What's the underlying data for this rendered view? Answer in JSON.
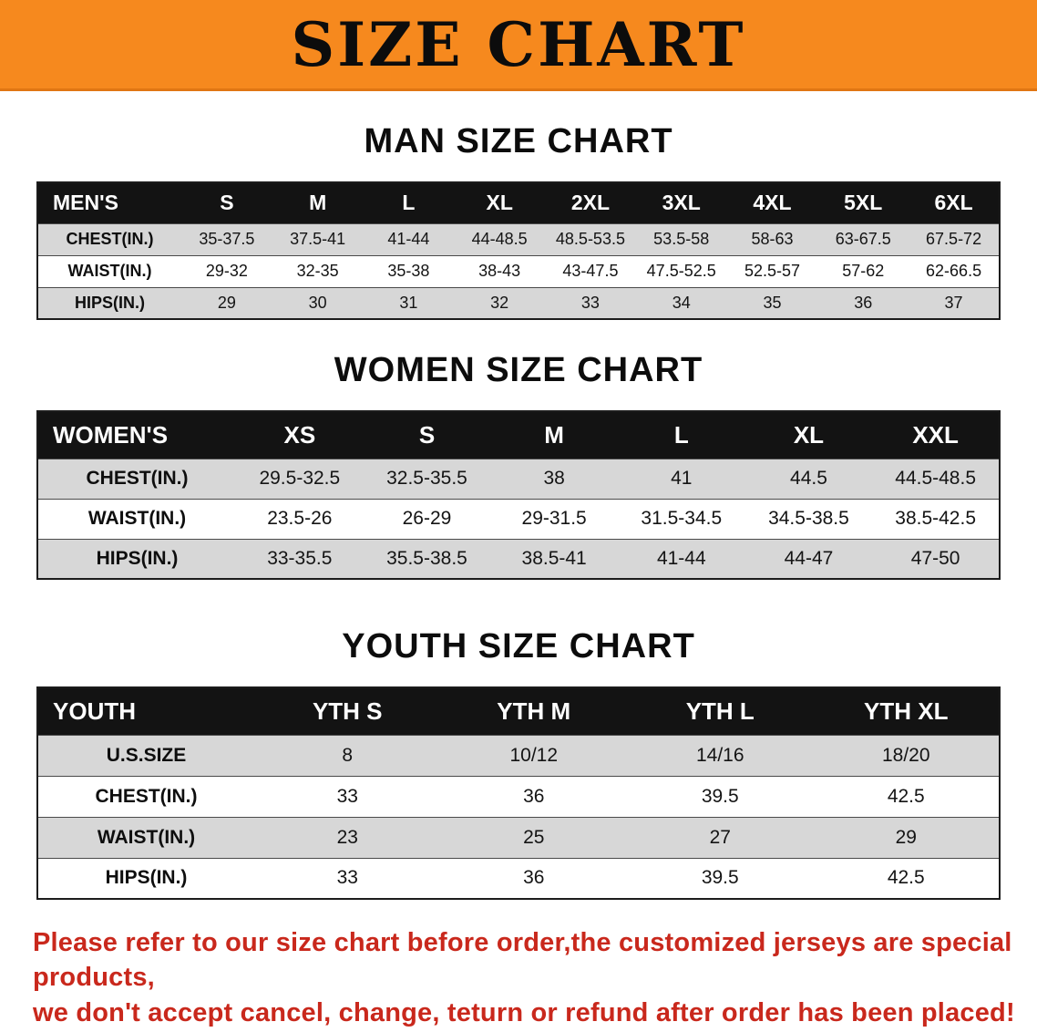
{
  "banner": {
    "title": "SIZE CHART",
    "bg_color": "#f6891e"
  },
  "sections": [
    {
      "id": "men",
      "heading": "MAN SIZE CHART",
      "label": "MEN'S",
      "columns": [
        "S",
        "M",
        "L",
        "XL",
        "2XL",
        "3XL",
        "4XL",
        "5XL",
        "6XL"
      ],
      "rows": [
        {
          "label": "CHEST(IN.)",
          "values": [
            "35-37.5",
            "37.5-41",
            "41-44",
            "44-48.5",
            "48.5-53.5",
            "53.5-58",
            "58-63",
            "63-67.5",
            "67.5-72"
          ]
        },
        {
          "label": "WAIST(IN.)",
          "values": [
            "29-32",
            "32-35",
            "35-38",
            "38-43",
            "43-47.5",
            "47.5-52.5",
            "52.5-57",
            "57-62",
            "62-66.5"
          ]
        },
        {
          "label": "HIPS(IN.)",
          "values": [
            "29",
            "30",
            "31",
            "32",
            "33",
            "34",
            "35",
            "36",
            "37"
          ]
        }
      ]
    },
    {
      "id": "women",
      "heading": "WOMEN SIZE CHART",
      "label": "WOMEN'S",
      "columns": [
        "XS",
        "S",
        "M",
        "L",
        "XL",
        "XXL"
      ],
      "rows": [
        {
          "label": "CHEST(IN.)",
          "values": [
            "29.5-32.5",
            "32.5-35.5",
            "38",
            "41",
            "44.5",
            "44.5-48.5"
          ]
        },
        {
          "label": "WAIST(IN.)",
          "values": [
            "23.5-26",
            "26-29",
            "29-31.5",
            "31.5-34.5",
            "34.5-38.5",
            "38.5-42.5"
          ]
        },
        {
          "label": "HIPS(IN.)",
          "values": [
            "33-35.5",
            "35.5-38.5",
            "38.5-41",
            "41-44",
            "44-47",
            "47-50"
          ]
        }
      ]
    },
    {
      "id": "youth",
      "heading": "YOUTH SIZE CHART",
      "label": "YOUTH",
      "columns": [
        "YTH S",
        "YTH M",
        "YTH L",
        "YTH XL"
      ],
      "rows": [
        {
          "label": "U.S.SIZE",
          "values": [
            "8",
            "10/12",
            "14/16",
            "18/20"
          ]
        },
        {
          "label": "CHEST(IN.)",
          "values": [
            "33",
            "36",
            "39.5",
            "42.5"
          ]
        },
        {
          "label": "WAIST(IN.)",
          "values": [
            "23",
            "25",
            "27",
            "29"
          ]
        },
        {
          "label": "HIPS(IN.)",
          "values": [
            "33",
            "36",
            "39.5",
            "42.5"
          ]
        }
      ]
    }
  ],
  "disclaimer": {
    "color": "#c9281c",
    "line1": "Please refer to our size chart before order,the customized jerseys are special products,",
    "line2": "we don't accept cancel, change, teturn or refund after order has been placed!"
  }
}
